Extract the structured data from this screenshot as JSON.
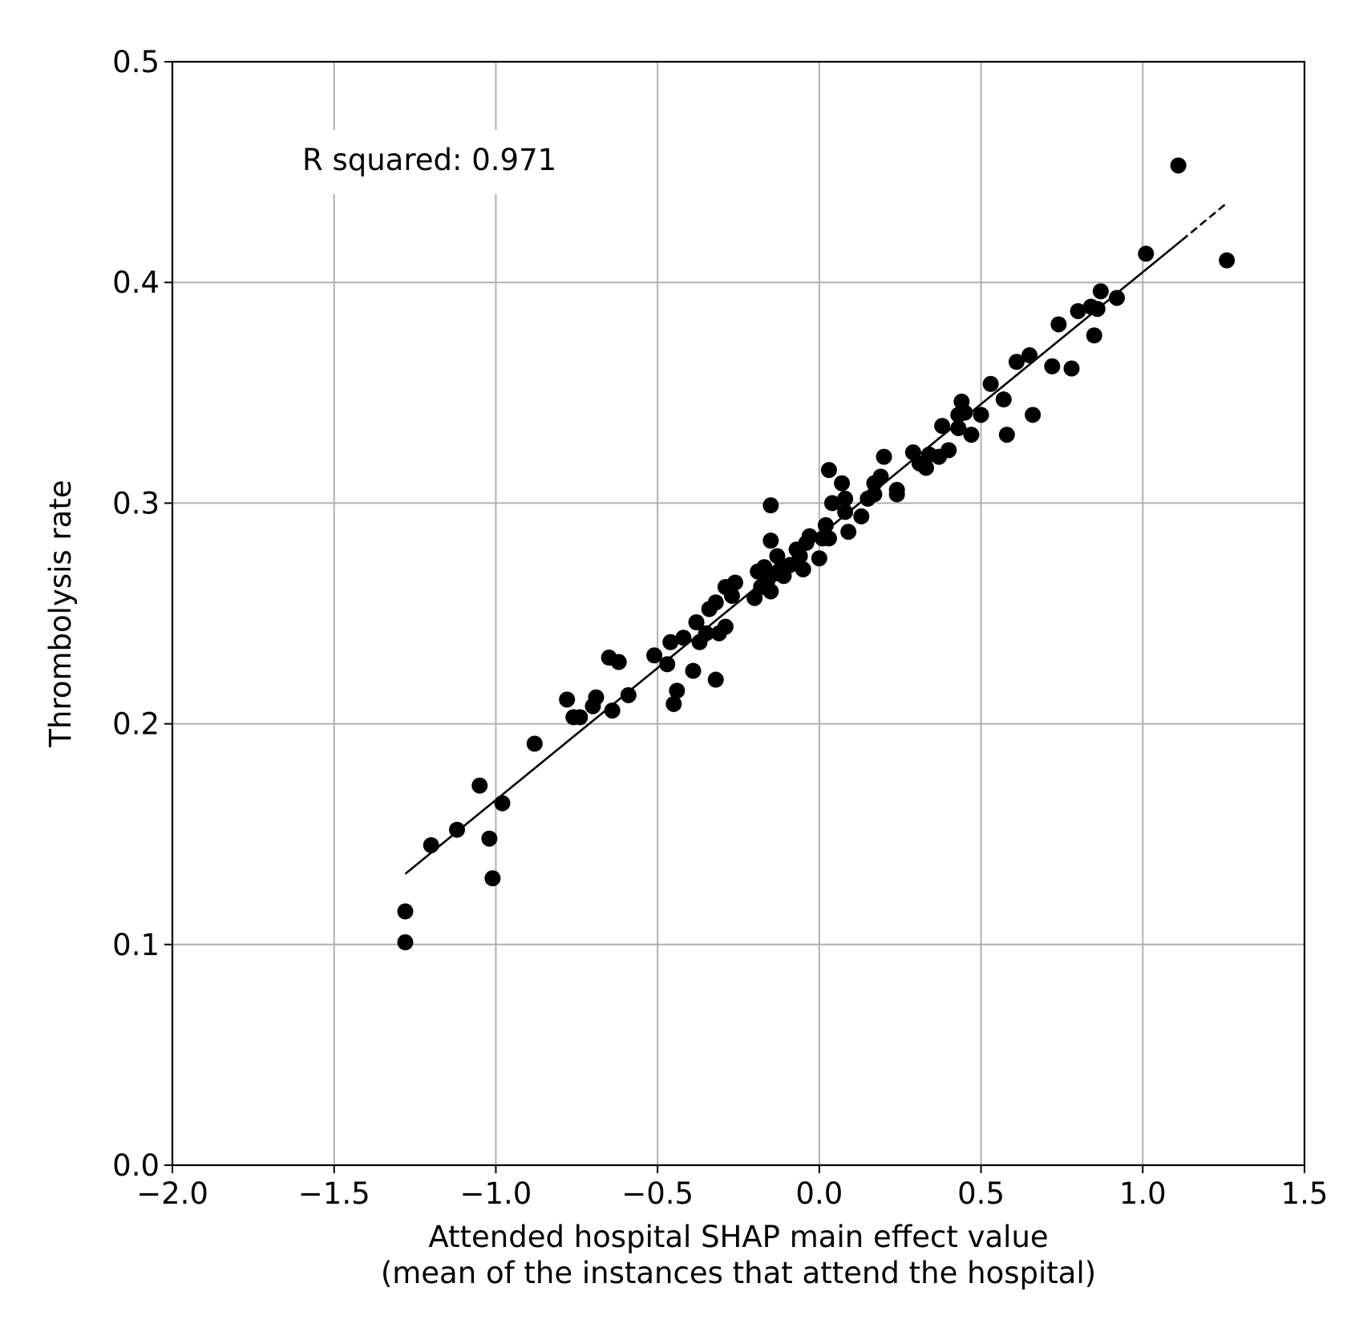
{
  "chart_data": {
    "type": "scatter",
    "title": "",
    "xlabel": "Attended hospital SHAP main effect value",
    "xlabel_line2": "(mean of the instances that attend the hospital)",
    "ylabel": "Thrombolysis rate",
    "xlim": [
      -2.0,
      1.5
    ],
    "ylim": [
      0.0,
      0.5
    ],
    "xticks": [
      -2.0,
      -1.5,
      -1.0,
      -0.5,
      0.0,
      0.5,
      1.0,
      1.5
    ],
    "yticks": [
      0.0,
      0.1,
      0.2,
      0.3,
      0.4,
      0.5
    ],
    "xtick_labels": [
      "−2.0",
      "−1.5",
      "−1.0",
      "−0.5",
      "0.0",
      "0.5",
      "1.0",
      "1.5"
    ],
    "ytick_labels": [
      "0.0",
      "0.1",
      "0.2",
      "0.3",
      "0.4",
      "0.5"
    ],
    "grid": true,
    "annotation": "R squared: 0.971",
    "marker_color": "#000000",
    "grid_color": "#b0b0b0",
    "fit_line": {
      "solid": {
        "x0": -1.28,
        "y0": 0.132,
        "x1": 1.12,
        "y1": 0.419
      },
      "dashed": {
        "x0": 1.12,
        "y0": 0.419,
        "x1": 1.26,
        "y1": 0.436
      }
    },
    "points": [
      [
        -1.28,
        0.101
      ],
      [
        -1.28,
        0.115
      ],
      [
        -1.2,
        0.145
      ],
      [
        -1.12,
        0.152
      ],
      [
        -1.05,
        0.172
      ],
      [
        -1.02,
        0.148
      ],
      [
        -1.01,
        0.13
      ],
      [
        -0.98,
        0.164
      ],
      [
        -0.88,
        0.191
      ],
      [
        -0.78,
        0.211
      ],
      [
        -0.76,
        0.203
      ],
      [
        -0.74,
        0.203
      ],
      [
        -0.7,
        0.208
      ],
      [
        -0.69,
        0.212
      ],
      [
        -0.65,
        0.23
      ],
      [
        -0.64,
        0.206
      ],
      [
        -0.62,
        0.228
      ],
      [
        -0.59,
        0.213
      ],
      [
        -0.51,
        0.231
      ],
      [
        -0.47,
        0.227
      ],
      [
        -0.46,
        0.237
      ],
      [
        -0.45,
        0.209
      ],
      [
        -0.44,
        0.215
      ],
      [
        -0.42,
        0.239
      ],
      [
        -0.39,
        0.224
      ],
      [
        -0.38,
        0.246
      ],
      [
        -0.37,
        0.237
      ],
      [
        -0.35,
        0.241
      ],
      [
        -0.34,
        0.252
      ],
      [
        -0.32,
        0.22
      ],
      [
        -0.32,
        0.255
      ],
      [
        -0.31,
        0.241
      ],
      [
        -0.29,
        0.244
      ],
      [
        -0.29,
        0.262
      ],
      [
        -0.27,
        0.258
      ],
      [
        -0.26,
        0.264
      ],
      [
        -0.2,
        0.257
      ],
      [
        -0.19,
        0.269
      ],
      [
        -0.18,
        0.262
      ],
      [
        -0.17,
        0.271
      ],
      [
        -0.16,
        0.265
      ],
      [
        -0.15,
        0.299
      ],
      [
        -0.15,
        0.283
      ],
      [
        -0.15,
        0.26
      ],
      [
        -0.14,
        0.268
      ],
      [
        -0.13,
        0.276
      ],
      [
        -0.12,
        0.27
      ],
      [
        -0.11,
        0.267
      ],
      [
        -0.09,
        0.272
      ],
      [
        -0.07,
        0.279
      ],
      [
        -0.06,
        0.276
      ],
      [
        -0.05,
        0.27
      ],
      [
        -0.04,
        0.282
      ],
      [
        -0.03,
        0.285
      ],
      [
        0.0,
        0.275
      ],
      [
        0.01,
        0.284
      ],
      [
        0.02,
        0.29
      ],
      [
        0.03,
        0.284
      ],
      [
        0.03,
        0.315
      ],
      [
        0.04,
        0.3
      ],
      [
        0.07,
        0.309
      ],
      [
        0.08,
        0.302
      ],
      [
        0.08,
        0.296
      ],
      [
        0.09,
        0.287
      ],
      [
        0.13,
        0.294
      ],
      [
        0.15,
        0.302
      ],
      [
        0.17,
        0.309
      ],
      [
        0.17,
        0.304
      ],
      [
        0.19,
        0.312
      ],
      [
        0.2,
        0.321
      ],
      [
        0.24,
        0.304
      ],
      [
        0.24,
        0.306
      ],
      [
        0.29,
        0.323
      ],
      [
        0.31,
        0.318
      ],
      [
        0.33,
        0.316
      ],
      [
        0.34,
        0.322
      ],
      [
        0.37,
        0.321
      ],
      [
        0.38,
        0.335
      ],
      [
        0.4,
        0.324
      ],
      [
        0.43,
        0.334
      ],
      [
        0.43,
        0.34
      ],
      [
        0.44,
        0.346
      ],
      [
        0.45,
        0.341
      ],
      [
        0.47,
        0.331
      ],
      [
        0.5,
        0.34
      ],
      [
        0.53,
        0.354
      ],
      [
        0.57,
        0.347
      ],
      [
        0.58,
        0.331
      ],
      [
        0.61,
        0.364
      ],
      [
        0.65,
        0.367
      ],
      [
        0.66,
        0.34
      ],
      [
        0.72,
        0.362
      ],
      [
        0.74,
        0.381
      ],
      [
        0.78,
        0.361
      ],
      [
        0.8,
        0.387
      ],
      [
        0.84,
        0.389
      ],
      [
        0.85,
        0.376
      ],
      [
        0.86,
        0.388
      ],
      [
        0.87,
        0.396
      ],
      [
        0.92,
        0.393
      ],
      [
        1.01,
        0.413
      ],
      [
        1.11,
        0.453
      ],
      [
        1.26,
        0.41
      ]
    ]
  }
}
